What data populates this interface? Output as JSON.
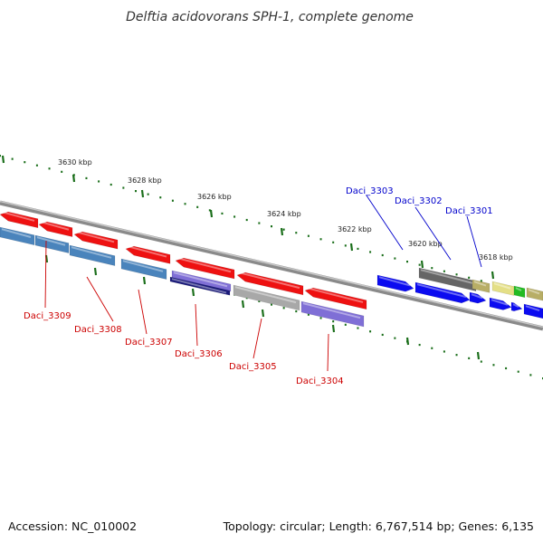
{
  "title": "Delftia acidovorans SPH-1, complete genome",
  "footer": {
    "accession": "Accession: NC_010002",
    "summary": "Topology: circular; Length: 6,767,514 bp; Genes: 6,135"
  },
  "colors": {
    "forward_label": "#0000cc",
    "reverse_label": "#cc0000",
    "tick": "#1a6e1a",
    "backbone": "#8a8a8a",
    "red": "#ee1111",
    "steel": "#4a84bc",
    "blue": "#0b0bf0",
    "gray": "#a8a8a8",
    "dark_gray": "#666666",
    "khaki": "#b8ae66",
    "yellow": "#e4df86",
    "green": "#22bb22",
    "lavender": "#7f6fd6",
    "navy": "#1a1a7a"
  },
  "ruler": [
    "3618 kbp",
    "3620 kbp",
    "3622 kbp",
    "3624 kbp",
    "3626 kbp",
    "3628 kbp",
    "3630 kbp"
  ],
  "labels": {
    "forward": [
      "Daci_3303",
      "Daci_3302",
      "Daci_3301"
    ],
    "reverse": [
      "Daci_3309",
      "Daci_3308",
      "Daci_3307",
      "Daci_3306",
      "Daci_3305",
      "Daci_3304"
    ]
  }
}
